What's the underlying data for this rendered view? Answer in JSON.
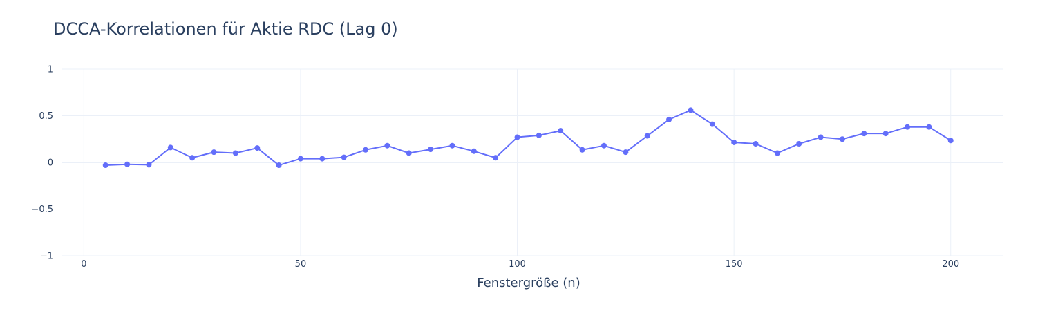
{
  "chart_data": {
    "type": "line",
    "title": "DCCA-Korrelationen für Aktie RDC (Lag 0)",
    "xlabel": "Fenstergröße (n)",
    "ylabel": "",
    "xlim": [
      -5,
      212
    ],
    "ylim": [
      -1,
      1
    ],
    "x_ticks": [
      0,
      50,
      100,
      150,
      200
    ],
    "y_ticks": [
      -1,
      -0.5,
      0,
      0.5,
      1
    ],
    "x_tick_labels": [
      "0",
      "50",
      "100",
      "150",
      "200"
    ],
    "y_tick_labels": [
      "−1",
      "−0.5",
      "0",
      "0.5",
      "1"
    ],
    "grid": true,
    "series": [
      {
        "color": "#636efa",
        "x": [
          5,
          10,
          15,
          20,
          25,
          30,
          35,
          40,
          45,
          50,
          55,
          60,
          65,
          70,
          75,
          80,
          85,
          90,
          95,
          100,
          105,
          110,
          115,
          120,
          125,
          130,
          135,
          140,
          145,
          150,
          155,
          160,
          165,
          170,
          175,
          180,
          185,
          190,
          195,
          200
        ],
        "values": [
          -0.03,
          -0.02,
          -0.025,
          0.16,
          0.05,
          0.11,
          0.1,
          0.155,
          -0.03,
          0.04,
          0.04,
          0.055,
          0.135,
          0.18,
          0.1,
          0.14,
          0.18,
          0.12,
          0.05,
          0.27,
          0.29,
          0.34,
          0.135,
          0.18,
          0.11,
          0.285,
          0.46,
          0.56,
          0.41,
          0.215,
          0.2,
          0.1,
          0.2,
          0.27,
          0.25,
          0.31,
          0.31,
          0.38,
          0.38,
          0.235
        ]
      }
    ]
  }
}
